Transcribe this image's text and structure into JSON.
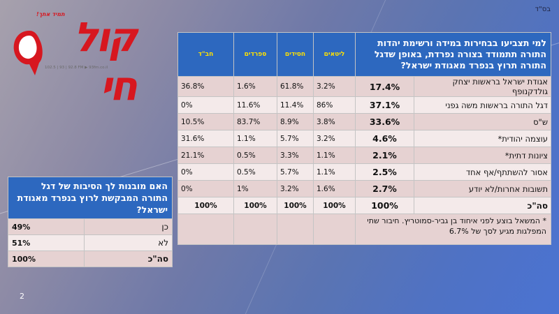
{
  "slide": {
    "top_right_text": "בס\"ד",
    "slide_number": "2"
  },
  "logo": {
    "main_text": "קול חי",
    "tagline": "תמיד אתך!",
    "frequencies": "102.5 | 93 | 92.8 FM ▶ 93fm.co.il",
    "color": "#d7171f"
  },
  "main_table": {
    "question": "למי תצביעו בבחירות במידה ורשימת יהדות התורה תתמודד בצורה נפרדת, באופן שדגל התורה תרוץ בנפרד מאגודת ישראל?",
    "columns": [
      "ליטאים",
      "חסידים",
      "ספרדים",
      "חב\"ד"
    ],
    "rows": [
      {
        "label": "אגודת ישראל בראשות יצחק גולדקנופף",
        "total": "17.4%",
        "values": [
          "3.2%",
          "61.8%",
          "1.6%",
          "36.8%"
        ]
      },
      {
        "label": "דגל התורה בראשות משה גפני",
        "total": "37.1%",
        "values": [
          "86%",
          "11.4%",
          "11.6%",
          "0%"
        ]
      },
      {
        "label": "ש\"ס",
        "total": "33.6%",
        "values": [
          "3.8%",
          "8.9%",
          "83.7%",
          "10.5%"
        ]
      },
      {
        "label": "עוצמה יהודית*",
        "total": "4.6%",
        "values": [
          "3.2%",
          "5.7%",
          "1.1%",
          "31.6%"
        ]
      },
      {
        "label": "ציונות דתית*",
        "total": "2.1%",
        "values": [
          "1.1%",
          "3.3%",
          "0.5%",
          "21.1%"
        ]
      },
      {
        "label": "אסור להשתתף/אף אחד",
        "total": "2.5%",
        "values": [
          "1.1%",
          "5.7%",
          "0.5%",
          "0%"
        ]
      },
      {
        "label": "תשובות אחרות/לא יודע",
        "total": "2.7%",
        "values": [
          "1.6%",
          "3.2%",
          "1%",
          "0%"
        ]
      }
    ],
    "total_row": {
      "label": "סה\"כ",
      "total": "100%",
      "values": [
        "100%",
        "100%",
        "100%",
        "100%"
      ]
    },
    "footnote": "* המשאל בוצע לפני איחוד בן גביר-סמוטריץ. חיבור שתי המפלגות מגיע לסך של 6.7%",
    "header_color": "#2d68bf",
    "column_header_color": "#ffe100"
  },
  "side_table": {
    "question": "האם מובנות לך הסיבות של דגל התורה המבקשת לרוץ בנפרד מאגודת ישראל?",
    "rows": [
      {
        "label": "כן",
        "value": "49%"
      },
      {
        "label": "לא",
        "value": "51%"
      },
      {
        "label": "סה\"כ",
        "value": "100%"
      }
    ]
  }
}
